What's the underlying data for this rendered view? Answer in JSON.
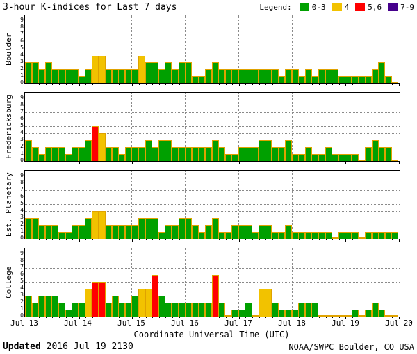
{
  "header": {
    "title": "3-hour K-indices for Last 7 days",
    "legend_label": "Legend:",
    "legend": [
      {
        "label": "0-3",
        "color": "#00a000"
      },
      {
        "label": "4",
        "color": "#f2c200"
      },
      {
        "label": "5,6",
        "color": "#ff0000"
      },
      {
        "label": "7-9",
        "color": "#46008c"
      }
    ]
  },
  "chart_data": {
    "type": "bar",
    "title": "3-hour K-indices for Last 7 days",
    "xlabel": "Coordinate Universal Time (UTC)",
    "x_tick_labels": [
      "Jul 13",
      "Jul 14",
      "Jul 15",
      "Jul 16",
      "Jul 17",
      "Jul 18",
      "Jul 19",
      "Jul 20"
    ],
    "y_tick_labels": [
      "0",
      "1",
      "2",
      "3",
      "4",
      "5",
      "6",
      "7",
      "8",
      "9"
    ],
    "ylim": [
      0,
      9
    ],
    "days": 7,
    "bars_per_day": 8,
    "h_gridlines_at": [
      4,
      5,
      7
    ],
    "grid": "dotted",
    "legend_position": "top-right",
    "bar_outline_color": "#dfa200",
    "color_rules": [
      {
        "k_range": "0-3",
        "color": "#00a000"
      },
      {
        "k_range": "4",
        "color": "#f2c200"
      },
      {
        "k_range": "5-6",
        "color": "#ff0000"
      },
      {
        "k_range": "7-9",
        "color": "#46008c"
      }
    ],
    "series": [
      {
        "name": "Boulder",
        "values": [
          3,
          3,
          2,
          3,
          2,
          2,
          2,
          2,
          1,
          2,
          4,
          4,
          2,
          2,
          2,
          2,
          2,
          4,
          3,
          3,
          2,
          3,
          2,
          3,
          3,
          1,
          1,
          2,
          3,
          2,
          2,
          2,
          2,
          2,
          2,
          2,
          2,
          2,
          1,
          2,
          2,
          1,
          2,
          1,
          2,
          2,
          2,
          1,
          1,
          1,
          1,
          1,
          2,
          3,
          1,
          0
        ]
      },
      {
        "name": "Fredericksburg",
        "values": [
          3,
          2,
          1,
          2,
          2,
          2,
          1,
          2,
          2,
          3,
          5,
          4,
          2,
          2,
          1,
          2,
          2,
          2,
          3,
          2,
          3,
          3,
          2,
          2,
          2,
          2,
          2,
          2,
          3,
          2,
          1,
          1,
          2,
          2,
          2,
          3,
          3,
          2,
          2,
          3,
          1,
          1,
          2,
          1,
          1,
          2,
          1,
          1,
          1,
          1,
          0,
          2,
          3,
          2,
          2,
          0
        ]
      },
      {
        "name": "Est. Planetary",
        "values": [
          3,
          3,
          2,
          2,
          2,
          1,
          1,
          2,
          2,
          3,
          4,
          4,
          2,
          2,
          2,
          2,
          2,
          3,
          3,
          3,
          1,
          2,
          2,
          3,
          3,
          2,
          1,
          2,
          3,
          1,
          1,
          2,
          2,
          2,
          1,
          2,
          2,
          1,
          1,
          2,
          1,
          1,
          1,
          1,
          1,
          1,
          0,
          1,
          1,
          1,
          0,
          1,
          1,
          1,
          1,
          1
        ]
      },
      {
        "name": "College",
        "values": [
          3,
          2,
          3,
          3,
          3,
          2,
          1,
          2,
          2,
          4,
          5,
          5,
          2,
          3,
          2,
          2,
          3,
          4,
          4,
          6,
          3,
          2,
          2,
          2,
          2,
          2,
          2,
          2,
          6,
          2,
          0,
          1,
          1,
          2,
          0,
          4,
          4,
          2,
          1,
          1,
          1,
          2,
          2,
          2,
          0,
          0,
          0,
          0,
          0,
          1,
          0,
          1,
          2,
          1,
          0,
          0
        ]
      }
    ]
  },
  "footer": {
    "updated_label": "Updated",
    "updated_value": "2016 Jul 19 2130",
    "credit": "NOAA/SWPC Boulder, CO USA"
  }
}
